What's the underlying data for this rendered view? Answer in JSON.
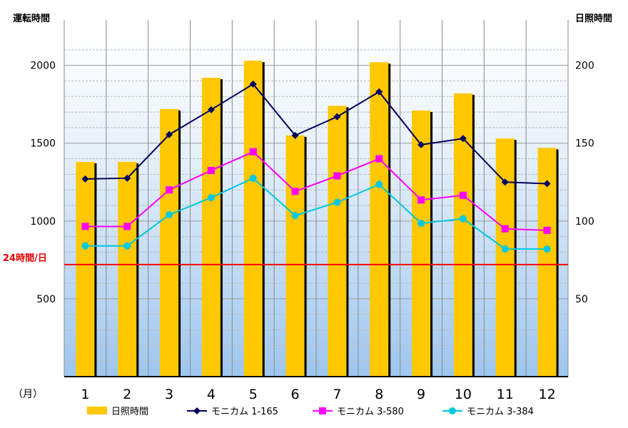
{
  "chart_data": {
    "type": "bar",
    "categories": [
      "1",
      "2",
      "3",
      "4",
      "5",
      "6",
      "7",
      "8",
      "9",
      "10",
      "11",
      "12"
    ],
    "x_unit_label": "（月）",
    "left_axis": {
      "title": "運転時間",
      "ylim": [
        0,
        2200
      ],
      "ticks": [
        "500",
        "1000",
        "1500",
        "2000"
      ],
      "tick_values": [
        500,
        1000,
        1500,
        2000
      ]
    },
    "right_axis": {
      "title": "日照時間",
      "ylim": [
        0,
        220
      ],
      "ticks": [
        "50",
        "100",
        "150",
        "200"
      ],
      "tick_values": [
        50,
        100,
        150,
        200
      ]
    },
    "reference_line": {
      "label": "24時間/日",
      "value": 720,
      "color": "#ff0000"
    },
    "series": [
      {
        "name": "日照時間",
        "type": "bar",
        "axis": "right",
        "color": "#ffc800",
        "values": [
          138,
          138,
          172,
          192,
          203,
          155,
          174,
          202,
          171,
          182,
          153,
          147
        ]
      },
      {
        "name": "モニカム 1-165",
        "type": "line",
        "axis": "left",
        "color": "#000060",
        "marker": "diamond",
        "values": [
          1270,
          1275,
          1555,
          1715,
          1880,
          1550,
          1670,
          1830,
          1490,
          1530,
          1250,
          1240
        ]
      },
      {
        "name": "モニカム 3-580",
        "type": "line",
        "axis": "left",
        "color": "#ff00ff",
        "marker": "square",
        "values": [
          965,
          965,
          1200,
          1325,
          1445,
          1190,
          1290,
          1400,
          1135,
          1165,
          950,
          940
        ]
      },
      {
        "name": "モニカム 3-384",
        "type": "line",
        "axis": "left",
        "color": "#00c8e0",
        "marker": "circle",
        "values": [
          840,
          840,
          1040,
          1150,
          1275,
          1035,
          1120,
          1235,
          985,
          1015,
          820,
          820
        ]
      }
    ],
    "grid": true,
    "legend_position": "bottom"
  }
}
